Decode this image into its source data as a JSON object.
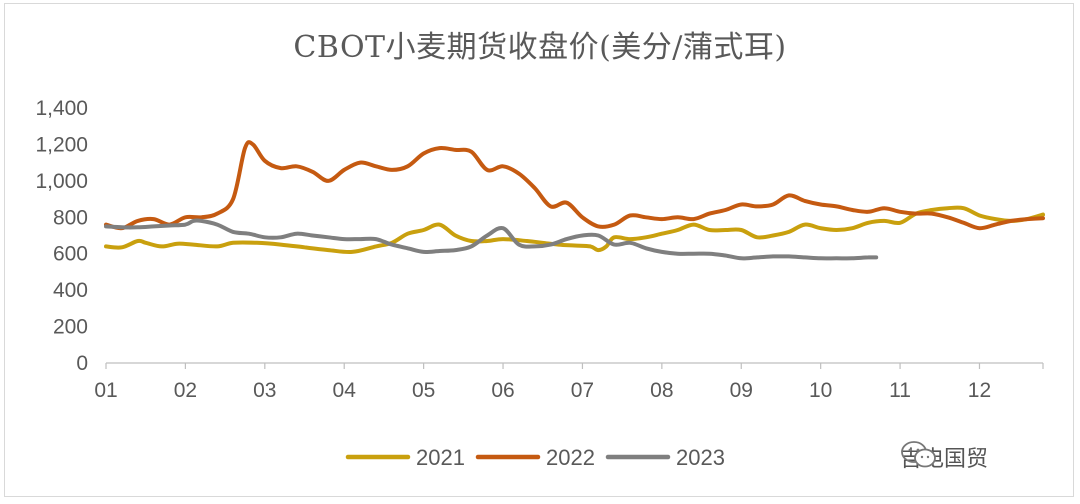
{
  "chart_data": {
    "type": "line",
    "title": "CBOT小麦期货收盘价(美分/蒲式耳)",
    "xlabel": "",
    "ylabel": "",
    "ylim": [
      0,
      1400
    ],
    "xlim": [
      1,
      12.8
    ],
    "y_ticks": [
      "0",
      "200",
      "400",
      "600",
      "800",
      "1,000",
      "1,200",
      "1,400"
    ],
    "x_ticks": [
      "01",
      "02",
      "03",
      "04",
      "05",
      "06",
      "07",
      "08",
      "09",
      "10",
      "11",
      "12"
    ],
    "grid": false,
    "legend_position": "bottom",
    "series": [
      {
        "name": "2021",
        "color": "#c9a00e",
        "x": [
          1.0,
          1.2,
          1.4,
          1.5,
          1.7,
          1.9,
          2.1,
          2.4,
          2.6,
          2.9,
          3.2,
          3.5,
          3.8,
          4.1,
          4.4,
          4.6,
          4.8,
          5.0,
          5.2,
          5.4,
          5.6,
          5.8,
          6.0,
          6.3,
          6.5,
          6.7,
          6.9,
          7.1,
          7.2,
          7.3,
          7.4,
          7.6,
          7.8,
          8.0,
          8.2,
          8.4,
          8.6,
          8.8,
          9.0,
          9.2,
          9.4,
          9.6,
          9.8,
          10.0,
          10.2,
          10.4,
          10.6,
          10.8,
          11.0,
          11.2,
          11.4,
          11.6,
          11.8,
          12.0,
          12.2,
          12.4,
          12.6,
          12.8
        ],
        "values": [
          640,
          635,
          670,
          660,
          640,
          655,
          650,
          640,
          660,
          660,
          650,
          635,
          620,
          610,
          640,
          660,
          710,
          730,
          760,
          700,
          670,
          670,
          680,
          670,
          660,
          650,
          645,
          640,
          620,
          640,
          690,
          680,
          690,
          710,
          730,
          760,
          730,
          730,
          730,
          690,
          700,
          720,
          760,
          740,
          730,
          740,
          770,
          780,
          770,
          820,
          840,
          850,
          850,
          810,
          790,
          780,
          790,
          815
        ]
      },
      {
        "name": "2022",
        "color": "#c55a11",
        "x": [
          1.0,
          1.2,
          1.4,
          1.6,
          1.8,
          2.0,
          2.2,
          2.4,
          2.6,
          2.75,
          2.85,
          3.0,
          3.2,
          3.4,
          3.6,
          3.8,
          4.0,
          4.2,
          4.4,
          4.6,
          4.8,
          5.0,
          5.2,
          5.4,
          5.6,
          5.8,
          6.0,
          6.2,
          6.4,
          6.6,
          6.8,
          7.0,
          7.2,
          7.4,
          7.6,
          7.8,
          8.0,
          8.2,
          8.4,
          8.6,
          8.8,
          9.0,
          9.2,
          9.4,
          9.6,
          9.8,
          10.0,
          10.2,
          10.4,
          10.6,
          10.8,
          11.0,
          11.2,
          11.4,
          11.6,
          11.8,
          12.0,
          12.2,
          12.4,
          12.6,
          12.8
        ],
        "values": [
          760,
          740,
          780,
          790,
          760,
          800,
          800,
          820,
          900,
          1180,
          1200,
          1110,
          1070,
          1080,
          1050,
          1000,
          1060,
          1100,
          1080,
          1060,
          1080,
          1150,
          1180,
          1170,
          1160,
          1060,
          1080,
          1040,
          960,
          860,
          880,
          800,
          750,
          760,
          810,
          800,
          790,
          800,
          790,
          820,
          840,
          870,
          860,
          870,
          920,
          890,
          870,
          860,
          840,
          830,
          850,
          830,
          820,
          820,
          800,
          770,
          740,
          760,
          780,
          790,
          795
        ]
      },
      {
        "name": "2023",
        "color": "#7f7f7f",
        "x": [
          1.0,
          1.2,
          1.4,
          1.6,
          1.8,
          2.0,
          2.1,
          2.2,
          2.4,
          2.6,
          2.8,
          3.0,
          3.2,
          3.4,
          3.6,
          3.8,
          4.0,
          4.2,
          4.4,
          4.6,
          4.8,
          5.0,
          5.2,
          5.4,
          5.6,
          5.8,
          6.0,
          6.2,
          6.4,
          6.6,
          6.8,
          7.0,
          7.2,
          7.4,
          7.6,
          7.8,
          8.0,
          8.2,
          8.4,
          8.6,
          8.8,
          9.0,
          9.2,
          9.4,
          9.6,
          9.8,
          10.0,
          10.2,
          10.4,
          10.6,
          10.7
        ],
        "values": [
          750,
          745,
          745,
          750,
          755,
          760,
          780,
          780,
          760,
          720,
          710,
          690,
          690,
          710,
          700,
          690,
          680,
          680,
          680,
          650,
          630,
          610,
          615,
          620,
          640,
          700,
          740,
          650,
          640,
          650,
          680,
          700,
          700,
          650,
          660,
          630,
          610,
          600,
          600,
          600,
          590,
          575,
          580,
          585,
          585,
          580,
          575,
          575,
          575,
          580,
          580
        ]
      }
    ]
  },
  "watermark": {
    "text": "吉电国贸",
    "icon": "wechat-icon"
  }
}
